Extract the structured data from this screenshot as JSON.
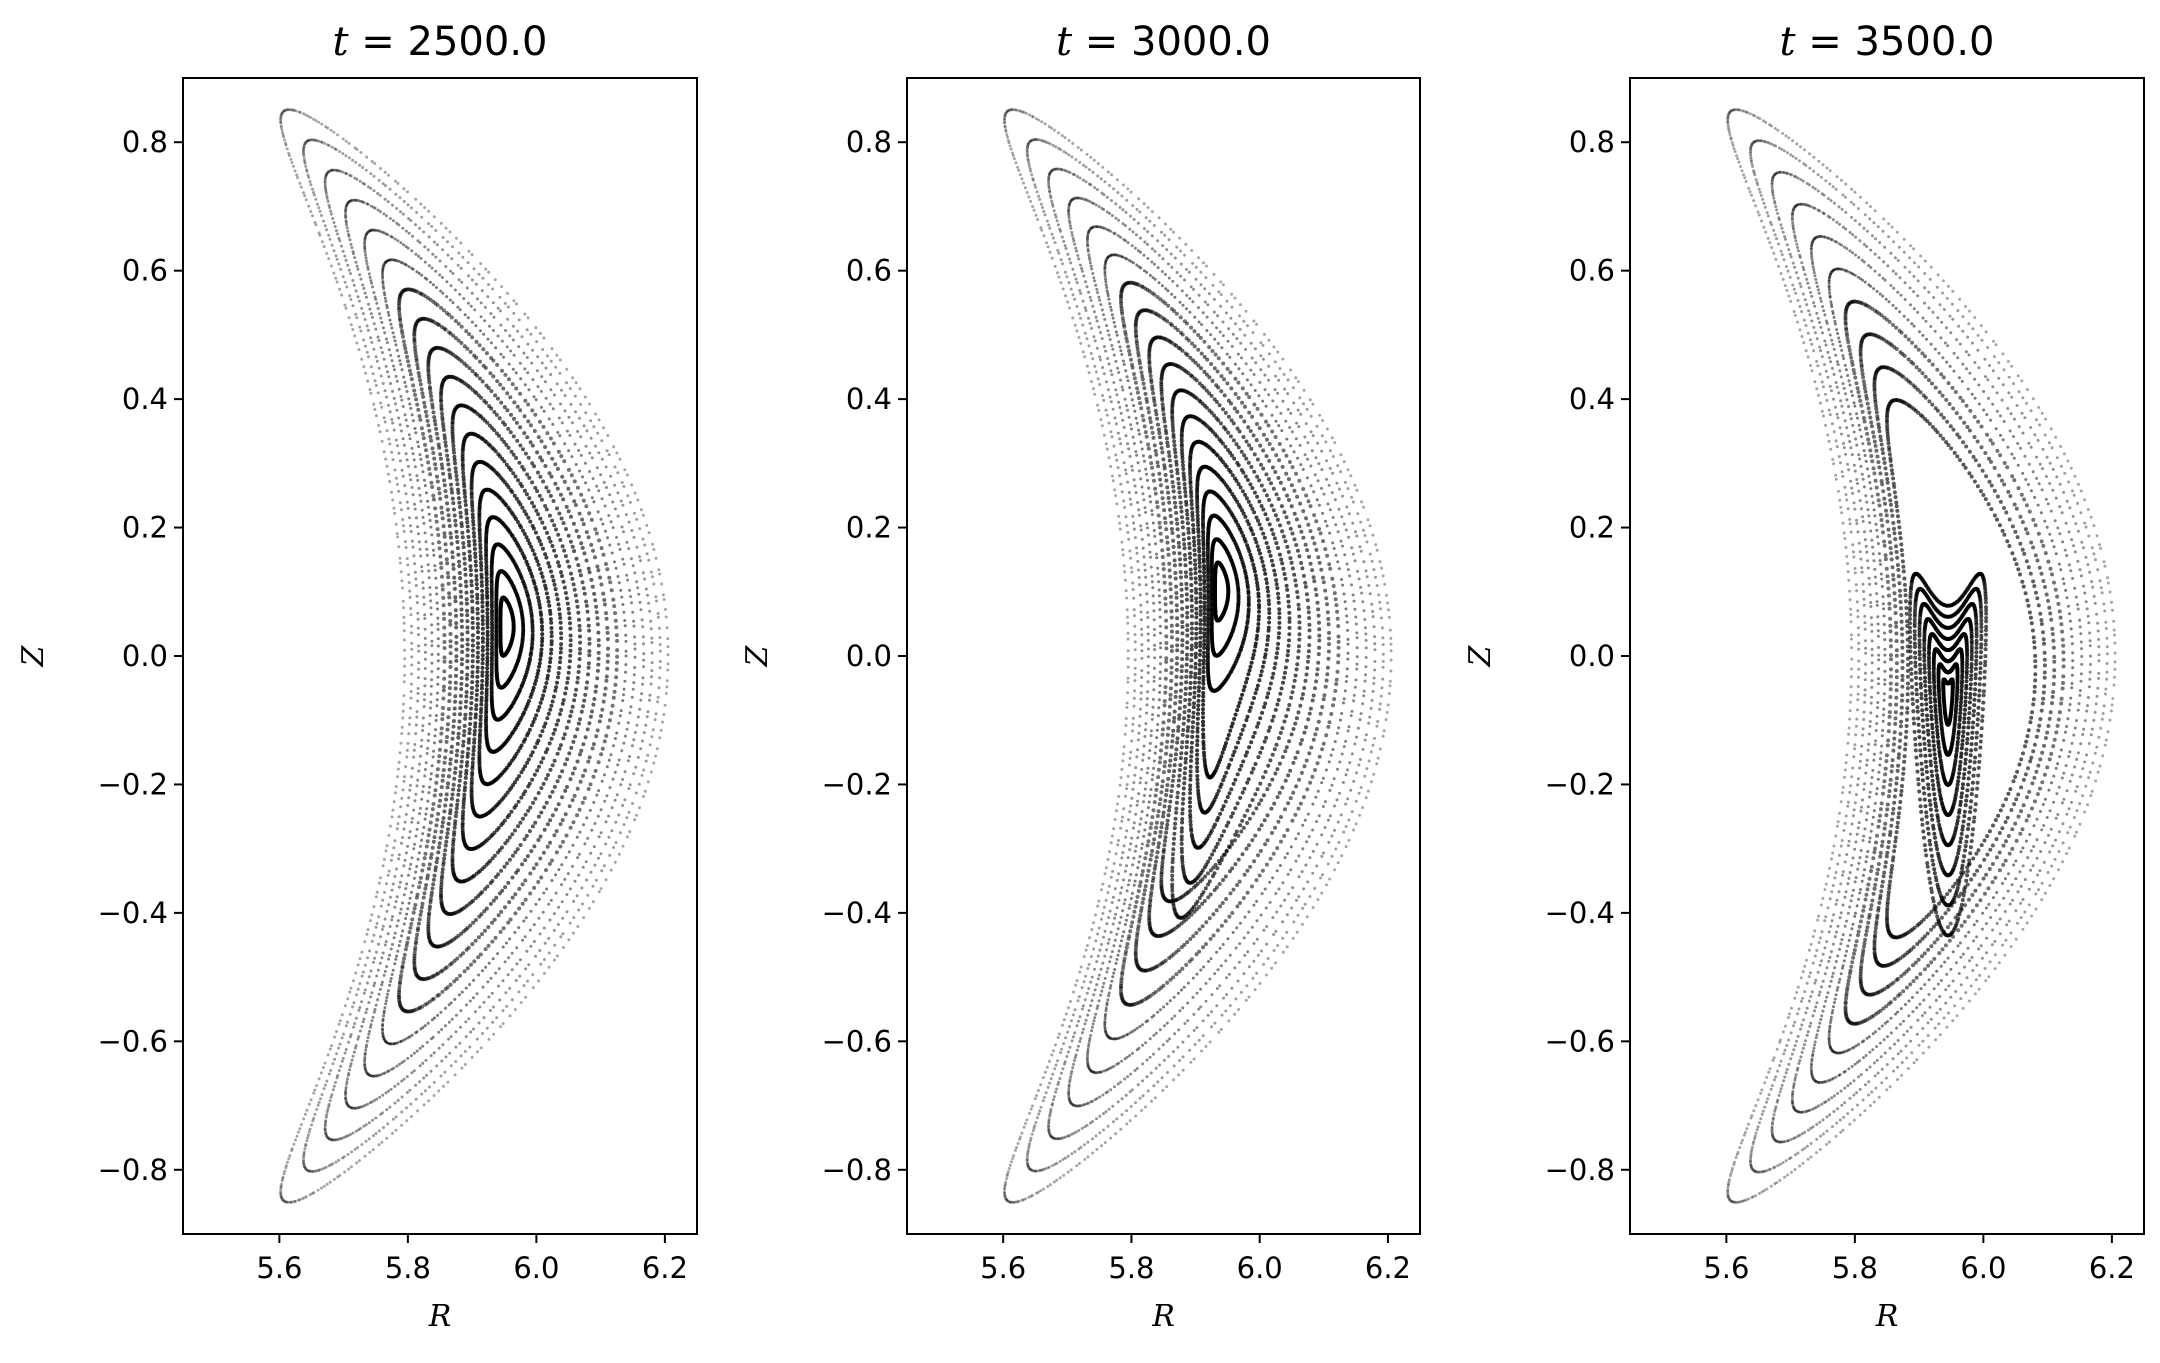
{
  "chart_data": [
    {
      "type": "scatter",
      "title_var": "t",
      "title_value": "2500.0",
      "xlabel": "R",
      "ylabel": "Z",
      "xlim": [
        5.45,
        6.25
      ],
      "ylim": [
        -0.9,
        0.9
      ],
      "xticks": [
        "5.6",
        "5.8",
        "6.0",
        "6.2"
      ],
      "yticks": [
        "0.8",
        "0.6",
        "0.4",
        "0.2",
        "0.0",
        "−0.2",
        "−0.4",
        "−0.6",
        "−0.8"
      ],
      "island": "none",
      "axis_center": [
        5.95,
        0.05
      ]
    },
    {
      "type": "scatter",
      "title_var": "t",
      "title_value": "3000.0",
      "xlabel": "R",
      "ylabel": "Z",
      "xlim": [
        5.45,
        6.25
      ],
      "ylim": [
        -0.9,
        0.9
      ],
      "xticks": [
        "5.6",
        "5.8",
        "6.0",
        "6.2"
      ],
      "yticks": [
        "0.8",
        "0.6",
        "0.4",
        "0.2",
        "0.0",
        "−0.2",
        "−0.4",
        "−0.6",
        "−0.8"
      ],
      "island": "lower",
      "axis_center": [
        5.935,
        0.11
      ]
    },
    {
      "type": "scatter",
      "title_var": "t",
      "title_value": "3500.0",
      "xlabel": "R",
      "ylabel": "Z",
      "xlim": [
        5.45,
        6.25
      ],
      "ylim": [
        -0.9,
        0.9
      ],
      "xticks": [
        "5.6",
        "5.8",
        "6.0",
        "6.2"
      ],
      "yticks": [
        "0.8",
        "0.6",
        "0.4",
        "0.2",
        "0.0",
        "−0.2",
        "−0.4",
        "−0.6",
        "−0.8"
      ],
      "island": "crescent",
      "axis_center": [
        5.945,
        -0.06
      ]
    }
  ],
  "colors": {
    "points": "#000000",
    "frame": "#000000",
    "background": "#ffffff"
  }
}
